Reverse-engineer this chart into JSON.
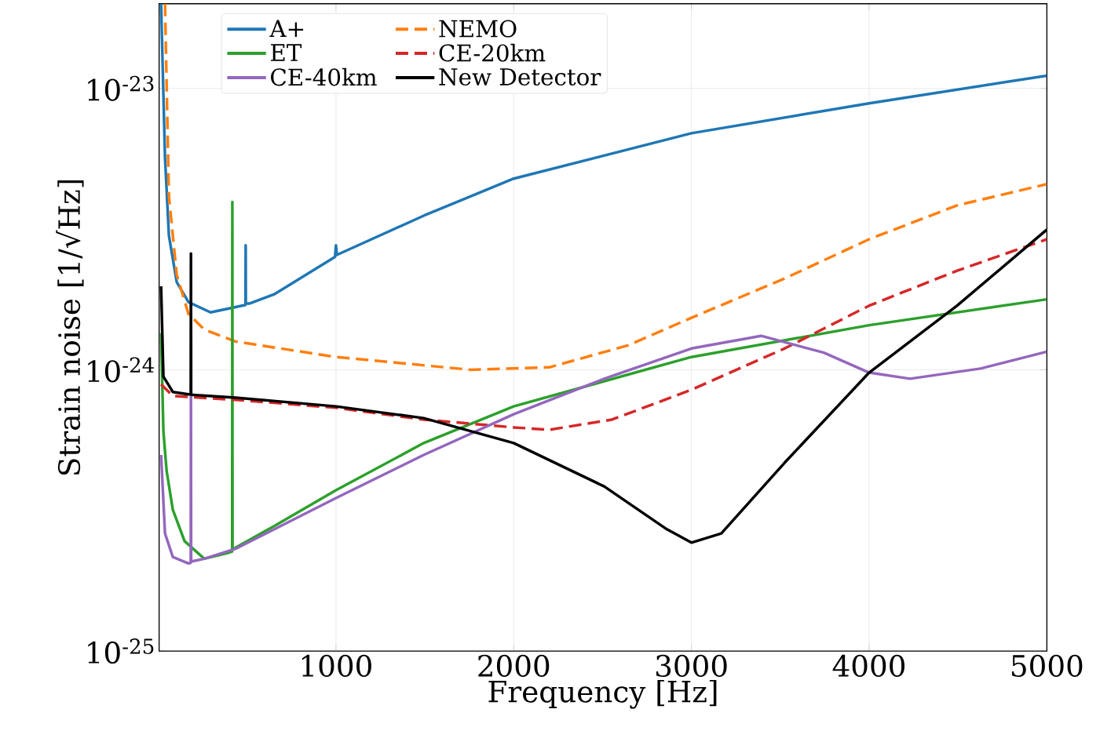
{
  "chart_data": {
    "type": "line",
    "xlabel": "Frequency [Hz]",
    "ylabel": "Strain noise [1/√Hz]",
    "log": "y",
    "grid": true,
    "legend": "top",
    "xlim": [
      5,
      5000
    ],
    "ylim": [
      1e-25,
      2e-23
    ],
    "xticks": [
      1000,
      2000,
      3000,
      4000,
      5000
    ],
    "yticks": [
      {
        "value": 1e-25,
        "label": "10$^{-25}$"
      },
      {
        "value": 1e-24,
        "label": "10$^{-24}$"
      },
      {
        "value": 1e-23,
        "label": "10$^{-23}$"
      }
    ],
    "series": [
      {
        "name": "A+",
        "color": "#1f77b4",
        "line_style": "solid",
        "x": [
          16,
          38,
          60,
          104,
          170,
          294,
          435,
          491,
          492,
          493,
          515,
          656,
          995,
          1000,
          1005,
          1494,
          2000,
          3000,
          4000,
          5000
        ],
        "values": [
          2e-23,
          5.7e-24,
          3e-24,
          2.05e-24,
          1.74e-24,
          1.6e-24,
          1.67e-24,
          1.7e-24,
          2.77e-24,
          1.72e-24,
          1.72e-24,
          1.86e-24,
          2.52e-24,
          2.77e-24,
          2.56e-24,
          3.53e-24,
          4.78e-24,
          6.93e-24,
          8.85e-24,
          1.11e-23
        ]
      },
      {
        "name": "NEMO",
        "color": "#ff7f0e",
        "line_style": "dashed",
        "x": [
          38,
          60,
          104,
          170,
          259,
          435,
          1000,
          1759,
          2200,
          2642,
          3000,
          3524,
          4000,
          4495,
          5000
        ],
        "values": [
          2e-23,
          4.15e-24,
          2.18e-24,
          1.58e-24,
          1.39e-24,
          1.26e-24,
          1.11e-24,
          1e-24,
          1.02e-24,
          1.22e-24,
          1.53e-24,
          2.11e-24,
          2.91e-24,
          3.84e-24,
          4.57e-24
        ]
      },
      {
        "name": "ET",
        "color": "#2ca02c",
        "line_style": "solid",
        "x": [
          16,
          29,
          47,
          82,
          148,
          259,
          391,
          416,
          417,
          418,
          435,
          656,
          1000,
          1494,
          2000,
          3000,
          4000,
          5000
        ],
        "values": [
          1.35e-24,
          6.04e-25,
          4.38e-25,
          3.18e-25,
          2.46e-25,
          2.13e-25,
          2.23e-25,
          2.26e-25,
          3.95e-24,
          2.3e-25,
          2.33e-25,
          2.79e-25,
          3.73e-25,
          5.49e-25,
          7.41e-25,
          1.11e-24,
          1.44e-24,
          1.78e-24
        ]
      },
      {
        "name": "CE-20km",
        "color": "#d62728",
        "line_style": "dashed",
        "x": [
          16,
          82,
          435,
          1000,
          1494,
          2000,
          2200,
          2553,
          3000,
          3524,
          4000,
          4495,
          5000
        ],
        "values": [
          8.87e-25,
          8.07e-25,
          7.82e-25,
          7.33e-25,
          6.65e-25,
          6.24e-25,
          6.12e-25,
          6.65e-25,
          8.49e-25,
          1.19e-24,
          1.69e-24,
          2.25e-24,
          2.91e-24
        ]
      },
      {
        "name": "CE-40km",
        "color": "#9467bd",
        "line_style": "solid",
        "x": [
          16,
          38,
          82,
          170,
          183,
          184,
          185,
          259,
          435,
          1000,
          1494,
          2000,
          2509,
          3000,
          3392,
          3745,
          4000,
          4230,
          4627,
          5000
        ],
        "values": [
          4.98e-25,
          2.62e-25,
          2.16e-25,
          2.05e-25,
          2.06e-25,
          8.07e-25,
          2.08e-25,
          2.13e-25,
          2.31e-25,
          3.5e-25,
          4.98e-25,
          6.95e-25,
          9.29e-25,
          1.19e-24,
          1.32e-24,
          1.15e-24,
          9.77e-25,
          9.29e-25,
          1.01e-24,
          1.16e-24
        ]
      },
      {
        "name": "New Detector",
        "color": "#000000",
        "line_style": "solid",
        "x": [
          16,
          29,
          82,
          170,
          183,
          184,
          185,
          435,
          1000,
          1494,
          2000,
          2509,
          2862,
          3000,
          3168,
          3524,
          4000,
          4495,
          5000
        ],
        "values": [
          1.98e-24,
          9.46e-25,
          8.34e-25,
          8.18e-25,
          8.18e-25,
          2.59e-24,
          8.15e-25,
          7.96e-25,
          7.41e-25,
          6.73e-25,
          5.49e-25,
          3.85e-25,
          2.71e-25,
          2.43e-25,
          2.62e-25,
          4.67e-25,
          9.77e-25,
          1.69e-24,
          3.15e-24
        ]
      }
    ]
  }
}
